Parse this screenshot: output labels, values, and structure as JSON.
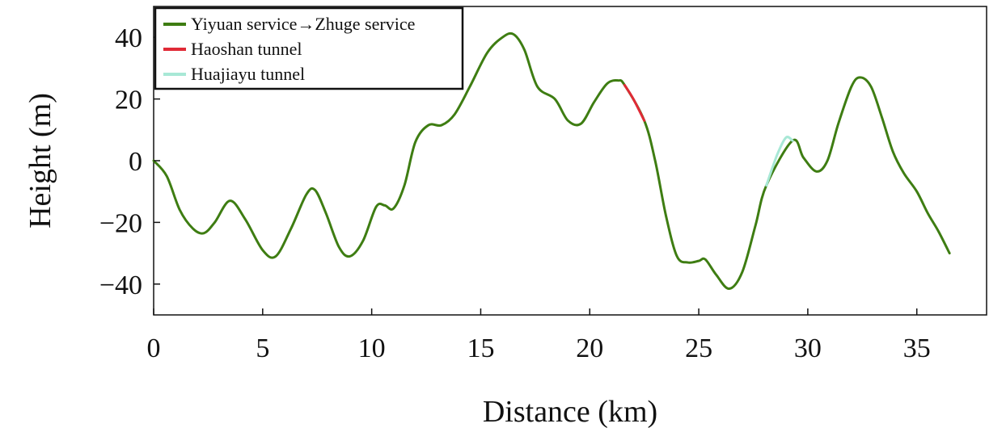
{
  "chart_data": {
    "type": "line",
    "title": "",
    "xlabel": "Distance (km)",
    "ylabel": "Height (m)",
    "xlim": [
      0,
      38.2
    ],
    "ylim": [
      -50,
      50
    ],
    "xticks": [
      0,
      5,
      10,
      15,
      20,
      25,
      30,
      35
    ],
    "yticks": [
      -40,
      -20,
      0,
      20,
      40
    ],
    "ytick_labels": [
      "−40",
      "−20",
      "0",
      "20",
      "40"
    ],
    "grid": false,
    "legend_position": "top-left",
    "series": [
      {
        "name": "Yiyuan service→Zhuge service",
        "color": "#3e7d12",
        "x": [
          0,
          0.6,
          1.2,
          1.8,
          2.3,
          2.8,
          3.5,
          4.2,
          5.0,
          5.6,
          6.3,
          7.0,
          7.4,
          7.9,
          8.5,
          9.0,
          9.6,
          10.2,
          10.6,
          11.0,
          11.5,
          12.0,
          12.6,
          13.2,
          13.8,
          14.5,
          15.3,
          16.0,
          16.5,
          17.0,
          17.6,
          18.4,
          19.0,
          19.6,
          20.2,
          20.8,
          21.3,
          21.6,
          22.5,
          23.0,
          23.5,
          24.0,
          24.5,
          25.0,
          25.3,
          25.8,
          26.4,
          27.0,
          27.6,
          28.1,
          29.3,
          29.8,
          30.4,
          30.9,
          31.4,
          32.0,
          32.4,
          32.9,
          33.4,
          33.9,
          34.4,
          35.0,
          35.5,
          36.0,
          36.5
        ],
        "y": [
          0,
          -5,
          -16,
          -22,
          -23.5,
          -20,
          -13,
          -19,
          -29,
          -31,
          -22,
          -11,
          -9.5,
          -17,
          -28,
          -31,
          -26,
          -15,
          -14.5,
          -15.5,
          -8,
          6,
          11.5,
          11.5,
          15,
          24,
          35,
          40,
          41,
          36,
          24,
          20,
          13,
          12,
          19,
          25,
          26,
          24.5,
          13,
          0,
          -18,
          -31,
          -33,
          -32.5,
          -32,
          -37,
          -41.5,
          -36,
          -21,
          -8,
          6.5,
          1,
          -3.5,
          0,
          12,
          24,
          27,
          24,
          14,
          3,
          -4,
          -10,
          -17,
          -23,
          -30
        ]
      },
      {
        "name": "Haoshan tunnel",
        "color": "#e02a36",
        "x": [
          21.6,
          22.0,
          22.5
        ],
        "y": [
          24.5,
          20,
          13
        ]
      },
      {
        "name": "Huajiayu tunnel",
        "color": "#a8e8d6",
        "x": [
          28.1,
          28.6,
          29.0,
          29.3
        ],
        "y": [
          -8,
          2,
          7.5,
          6.5
        ]
      }
    ]
  }
}
